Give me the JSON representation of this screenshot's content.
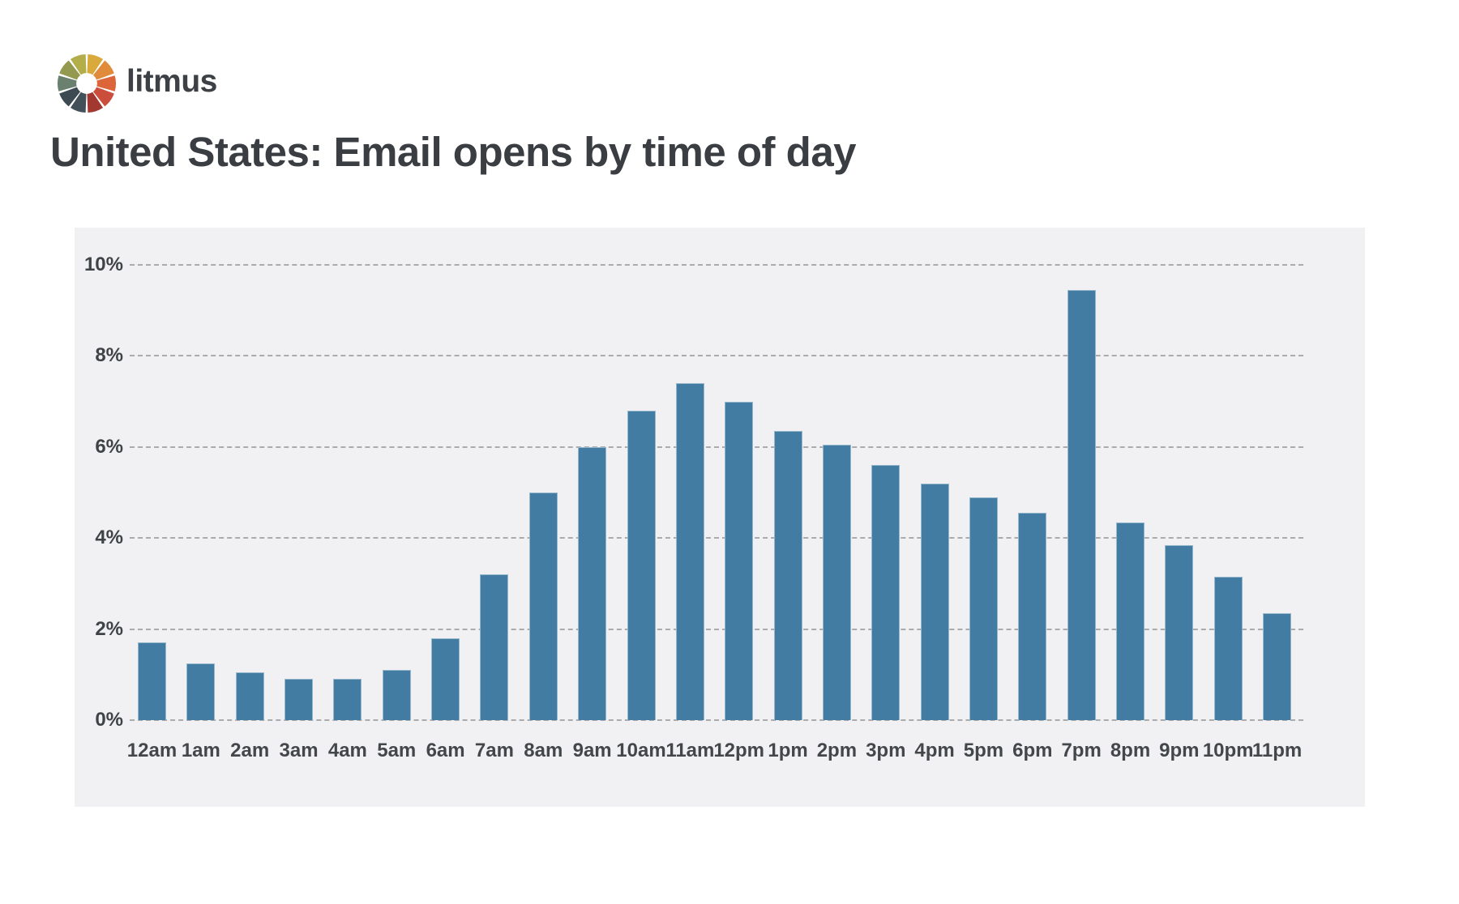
{
  "brand": {
    "wordmark": "litmus",
    "wheel_colors": [
      "#D9A93C",
      "#E08A3C",
      "#DC663A",
      "#CB4E3D",
      "#A23931",
      "#42505A",
      "#3D4A52",
      "#6B8170",
      "#93994F",
      "#B2AE49"
    ]
  },
  "title": "United States: Email opens by time of day",
  "chart_data": {
    "type": "bar",
    "title": "United States: Email opens by time of day",
    "categories": [
      "12am",
      "1am",
      "2am",
      "3am",
      "4am",
      "5am",
      "6am",
      "7am",
      "8am",
      "9am",
      "10am",
      "11am",
      "12pm",
      "1pm",
      "2pm",
      "3pm",
      "4pm",
      "5pm",
      "6pm",
      "7pm",
      "8pm",
      "9pm",
      "10pm",
      "11pm"
    ],
    "values": [
      1.7,
      1.25,
      1.05,
      0.9,
      0.9,
      1.1,
      1.8,
      3.2,
      5.0,
      6.0,
      6.8,
      7.4,
      7.0,
      6.35,
      6.05,
      5.6,
      5.2,
      4.9,
      4.55,
      9.45,
      4.35,
      3.85,
      3.15,
      2.35
    ],
    "unit": "%",
    "xlabel": "",
    "ylabel": "",
    "ylim": [
      0,
      10
    ],
    "ytick_labels": [
      "0%",
      "2%",
      "4%",
      "6%",
      "8%",
      "10%"
    ],
    "grid": "horizontal-dashed",
    "legend": "none",
    "colors": {
      "bar": "#427CA3",
      "panel_background": "#F1F1F3",
      "gridline": "#ABABAE",
      "axis_text": "#404346",
      "title_text": "#3A3E42",
      "page_background": "#FFFFFF"
    }
  }
}
